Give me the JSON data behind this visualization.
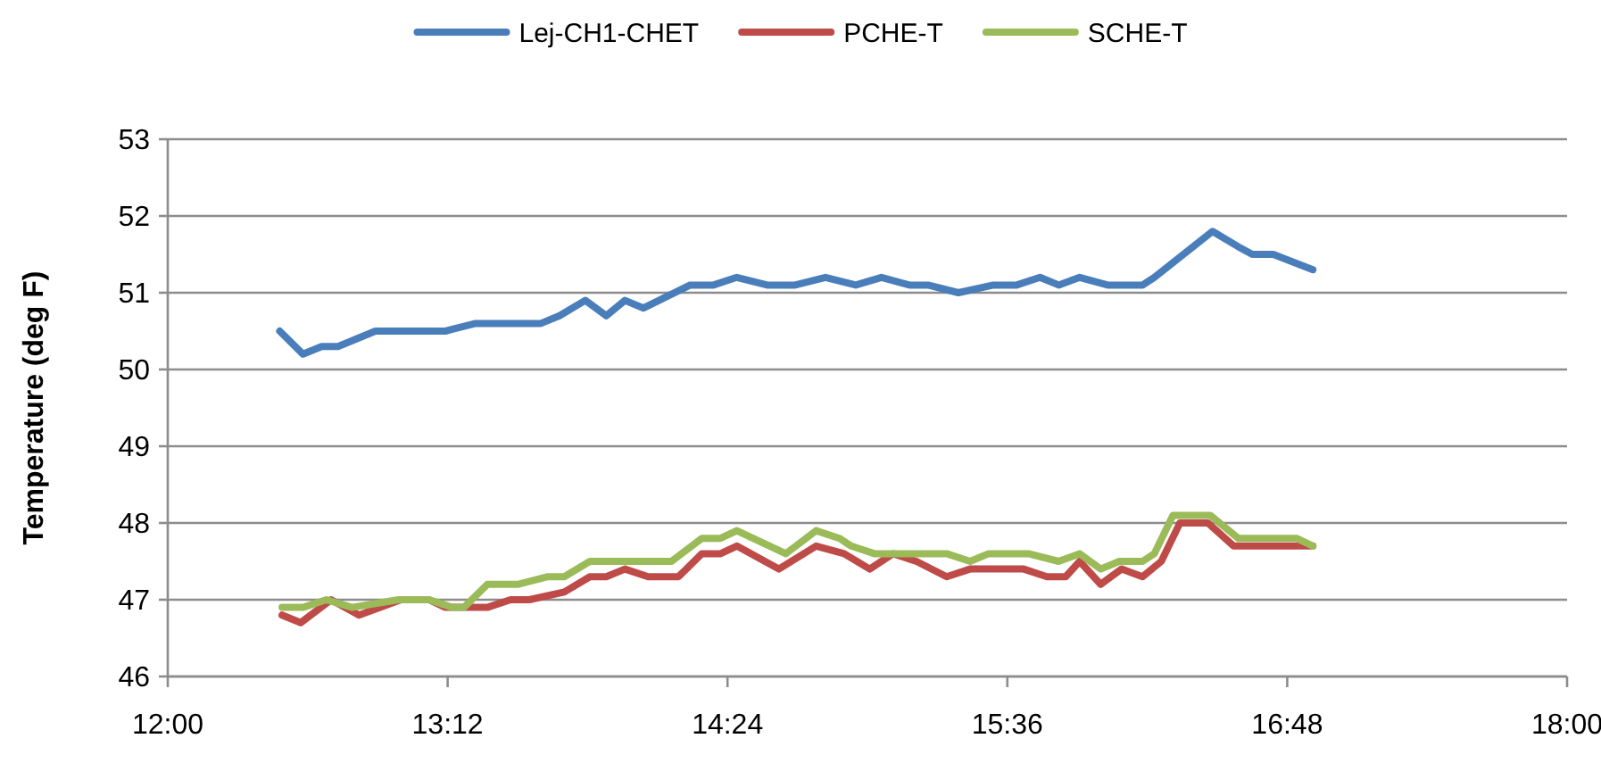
{
  "chart_data": {
    "type": "line",
    "ylabel": "Temperature (deg F)",
    "xlim": [
      12,
      18
    ],
    "xticks": [
      {
        "value": 12,
        "label": "12:00"
      },
      {
        "value": 13.2,
        "label": "13:12"
      },
      {
        "value": 14.4,
        "label": "14:24"
      },
      {
        "value": 15.6,
        "label": "15:36"
      },
      {
        "value": 16.8,
        "label": "16:48"
      },
      {
        "value": 18,
        "label": "18:00"
      }
    ],
    "ylim": [
      46,
      53
    ],
    "yticks": [
      46,
      47,
      48,
      49,
      50,
      51,
      52,
      53
    ],
    "grid": "y",
    "legend": "top",
    "line_style": "solid",
    "series": [
      {
        "name": "Lej-CH1-CHET",
        "color": "#4a7ebb",
        "x": [
          12.48,
          12.58,
          12.66,
          12.73,
          12.89,
          13.19,
          13.32,
          13.6,
          13.68,
          13.79,
          13.88,
          13.96,
          14.04,
          14.24,
          14.34,
          14.44,
          14.57,
          14.69,
          14.82,
          14.95,
          15.06,
          15.18,
          15.26,
          15.39,
          15.54,
          15.64,
          15.74,
          15.82,
          15.91,
          16.03,
          16.18,
          16.23,
          16.48,
          16.59,
          16.65,
          16.74,
          16.91
        ],
        "values": [
          50.5,
          50.2,
          50.3,
          50.3,
          50.5,
          50.5,
          50.6,
          50.6,
          50.7,
          50.9,
          50.7,
          50.9,
          50.8,
          51.1,
          51.1,
          51.2,
          51.1,
          51.1,
          51.2,
          51.1,
          51.2,
          51.1,
          51.1,
          51.0,
          51.1,
          51.1,
          51.2,
          51.1,
          51.2,
          51.1,
          51.1,
          51.2,
          51.8,
          51.6,
          51.5,
          51.5,
          51.3
        ]
      },
      {
        "name": "PCHE-T",
        "color": "#be4b48",
        "x": [
          12.49,
          12.57,
          12.7,
          12.82,
          13.0,
          13.12,
          13.19,
          13.37,
          13.47,
          13.55,
          13.7,
          13.81,
          13.88,
          13.96,
          14.06,
          14.19,
          14.29,
          14.37,
          14.44,
          14.62,
          14.78,
          14.9,
          15.01,
          15.11,
          15.21,
          15.34,
          15.44,
          15.67,
          15.77,
          15.85,
          15.91,
          16.0,
          16.09,
          16.18,
          16.26,
          16.34,
          16.46,
          16.57,
          16.64,
          16.91
        ],
        "values": [
          46.8,
          46.7,
          47.0,
          46.8,
          47.0,
          47.0,
          46.9,
          46.9,
          47.0,
          47.0,
          47.1,
          47.3,
          47.3,
          47.4,
          47.3,
          47.3,
          47.6,
          47.6,
          47.7,
          47.4,
          47.7,
          47.6,
          47.4,
          47.6,
          47.5,
          47.3,
          47.4,
          47.4,
          47.3,
          47.3,
          47.5,
          47.2,
          47.4,
          47.3,
          47.5,
          48.0,
          48.0,
          47.7,
          47.7,
          47.7
        ]
      },
      {
        "name": "SCHE-T",
        "color": "#9bbb59",
        "x": [
          12.49,
          12.58,
          12.68,
          12.79,
          12.99,
          13.12,
          13.22,
          13.27,
          13.37,
          13.5,
          13.63,
          13.7,
          13.81,
          13.93,
          14.16,
          14.29,
          14.37,
          14.44,
          14.65,
          14.78,
          14.88,
          14.93,
          15.03,
          15.16,
          15.34,
          15.44,
          15.52,
          15.69,
          15.82,
          15.91,
          16.0,
          16.08,
          16.18,
          16.23,
          16.31,
          16.38,
          16.47,
          16.59,
          16.74,
          16.84,
          16.91
        ],
        "values": [
          46.9,
          46.9,
          47.0,
          46.9,
          47.0,
          47.0,
          46.9,
          46.9,
          47.2,
          47.2,
          47.3,
          47.3,
          47.5,
          47.5,
          47.5,
          47.8,
          47.8,
          47.9,
          47.6,
          47.9,
          47.8,
          47.7,
          47.6,
          47.6,
          47.6,
          47.5,
          47.6,
          47.6,
          47.5,
          47.6,
          47.4,
          47.5,
          47.5,
          47.6,
          48.1,
          48.1,
          48.1,
          47.8,
          47.8,
          47.8,
          47.7
        ]
      }
    ]
  }
}
